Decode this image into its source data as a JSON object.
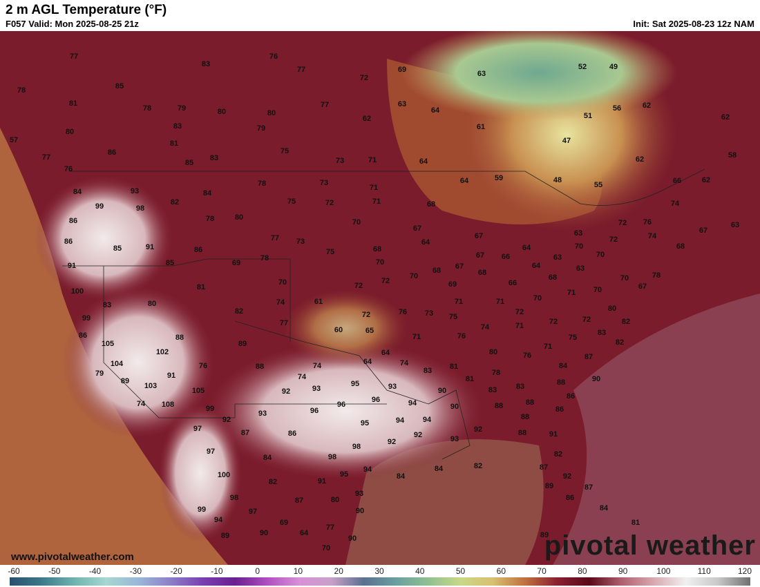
{
  "header": {
    "title": "2 m AGL Temperature (°F)",
    "valid": "F057 Valid: Mon 2025-08-25 21z",
    "init": "Init: Sat 2025-08-23 12z NAM"
  },
  "map": {
    "temperatures": [
      77,
      76,
      77,
      83,
      78,
      85,
      81,
      78,
      79,
      80,
      80,
      80,
      83,
      79,
      57,
      81,
      86,
      75,
      83,
      85,
      77,
      76,
      73,
      71,
      69,
      72,
      77,
      62,
      63,
      64,
      63,
      61,
      64,
      64,
      59,
      48,
      55,
      52,
      49,
      51,
      56,
      62,
      62,
      47,
      62,
      58,
      66,
      62,
      74,
      67,
      63,
      84,
      93,
      99,
      98,
      82,
      84,
      78,
      73,
      71,
      86,
      86,
      85,
      91,
      85,
      86,
      78,
      80,
      77,
      73,
      75,
      72,
      71,
      68,
      70,
      67,
      64,
      68,
      75,
      69,
      78,
      91,
      100,
      83,
      80,
      81,
      70,
      74,
      61,
      72,
      72,
      70,
      68,
      67,
      67,
      67,
      66,
      64,
      64,
      63,
      63,
      70,
      72,
      72,
      74,
      76,
      68,
      70,
      63,
      68,
      66,
      68,
      69,
      70,
      99,
      86,
      105,
      82,
      77,
      72,
      60,
      65,
      76,
      73,
      75,
      71,
      71,
      72,
      70,
      71,
      70,
      70,
      67,
      78,
      80,
      82,
      72,
      72,
      71,
      74,
      76,
      71,
      88,
      102,
      89,
      104,
      79,
      89,
      91,
      76,
      88,
      74,
      64,
      64,
      74,
      74,
      80,
      76,
      71,
      75,
      83,
      82,
      87,
      84,
      90,
      103,
      74,
      108,
      105,
      99,
      92,
      93,
      92,
      93,
      95,
      93,
      96,
      96,
      96,
      94,
      83,
      81,
      81,
      78,
      83,
      88,
      86,
      83,
      88,
      88,
      90,
      90,
      94,
      94,
      95,
      97,
      87,
      86,
      86,
      88,
      92,
      88,
      91,
      92,
      92,
      93,
      97,
      84,
      98,
      98,
      84,
      84,
      82,
      82,
      87,
      92,
      89,
      87,
      100,
      82,
      91,
      95,
      94,
      93,
      98,
      87,
      80,
      90,
      86,
      84,
      99,
      97,
      94,
      69,
      77,
      64,
      90,
      90,
      89,
      70,
      81,
      89
    ]
  },
  "footer": {
    "site": "www.pivotalweather.com",
    "brand": "pivotal weather"
  },
  "colorbar": {
    "ticks": [
      -60,
      -50,
      -40,
      -30,
      -20,
      -10,
      0,
      10,
      20,
      30,
      40,
      50,
      60,
      70,
      80,
      90,
      100,
      110,
      120
    ]
  }
}
